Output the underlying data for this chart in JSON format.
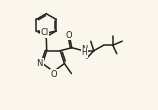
{
  "bg_color": "#faf6ec",
  "line_color": "#222222",
  "line_width": 1.1,
  "figsize": [
    1.58,
    1.1
  ],
  "dpi": 100,
  "xlim": [
    0,
    1.58
  ],
  "ylim": [
    0,
    1.1
  ]
}
